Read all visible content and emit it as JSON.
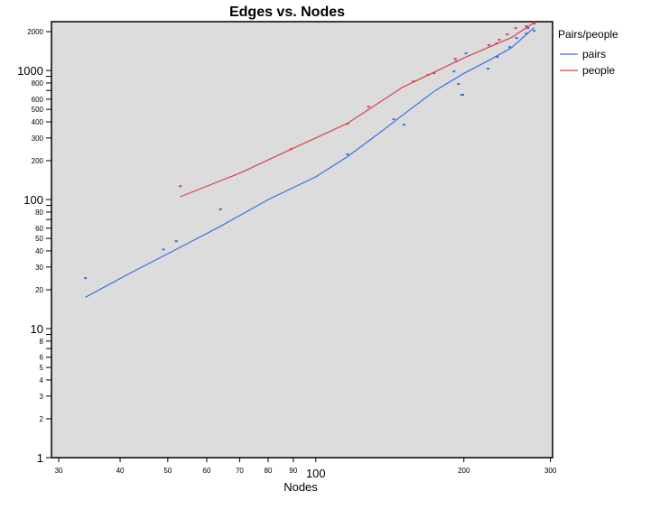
{
  "chart_data": {
    "type": "scatter",
    "title": "Edges vs. Nodes",
    "xlabel": "Nodes",
    "ylabel": "",
    "xscale": "log",
    "yscale": "log",
    "xlim": [
      29,
      303
    ],
    "ylim": [
      1,
      2390
    ],
    "grid": false,
    "x_ticks": [
      {
        "v": 30,
        "label": "30",
        "major": false
      },
      {
        "v": 40,
        "label": "40",
        "major": false
      },
      {
        "v": 50,
        "label": "50",
        "major": false
      },
      {
        "v": 60,
        "label": "60",
        "major": false
      },
      {
        "v": 70,
        "label": "70",
        "major": false
      },
      {
        "v": 80,
        "label": "80",
        "major": false
      },
      {
        "v": 90,
        "label": "90",
        "major": false
      },
      {
        "v": 100,
        "label": "100",
        "major": true
      },
      {
        "v": 200,
        "label": "200",
        "major": false
      },
      {
        "v": 300,
        "label": "300",
        "major": false
      }
    ],
    "y_ticks": [
      {
        "v": 1,
        "label": "1",
        "major": true
      },
      {
        "v": 2,
        "label": "2",
        "major": false
      },
      {
        "v": 3,
        "label": "3",
        "major": false
      },
      {
        "v": 4,
        "label": "4",
        "major": false
      },
      {
        "v": 5,
        "label": "5",
        "major": false
      },
      {
        "v": 6,
        "label": "6",
        "major": false
      },
      {
        "v": 7,
        "label": "",
        "major": false
      },
      {
        "v": 8,
        "label": "8",
        "major": false
      },
      {
        "v": 9,
        "label": "",
        "major": false
      },
      {
        "v": 10,
        "label": "10",
        "major": true
      },
      {
        "v": 20,
        "label": "20",
        "major": false
      },
      {
        "v": 30,
        "label": "30",
        "major": false
      },
      {
        "v": 40,
        "label": "40",
        "major": false
      },
      {
        "v": 50,
        "label": "50",
        "major": false
      },
      {
        "v": 60,
        "label": "60",
        "major": false
      },
      {
        "v": 70,
        "label": "",
        "major": false
      },
      {
        "v": 80,
        "label": "80",
        "major": false
      },
      {
        "v": 90,
        "label": "",
        "major": false
      },
      {
        "v": 100,
        "label": "100",
        "major": true
      },
      {
        "v": 200,
        "label": "200",
        "major": false
      },
      {
        "v": 300,
        "label": "300",
        "major": false
      },
      {
        "v": 400,
        "label": "400",
        "major": false
      },
      {
        "v": 500,
        "label": "500",
        "major": false
      },
      {
        "v": 600,
        "label": "600",
        "major": false
      },
      {
        "v": 700,
        "label": "",
        "major": false
      },
      {
        "v": 800,
        "label": "800",
        "major": false
      },
      {
        "v": 900,
        "label": "",
        "major": false
      },
      {
        "v": 1000,
        "label": "1000",
        "major": true
      },
      {
        "v": 2000,
        "label": "2000",
        "major": false
      }
    ],
    "legend": {
      "title": "Pairs/people",
      "placement": "right"
    },
    "series": [
      {
        "name": "pairs",
        "color": "#3a6fe0",
        "points": [
          [
            34,
            24.6
          ],
          [
            49,
            41
          ],
          [
            52,
            47.6
          ],
          [
            64,
            84
          ],
          [
            116,
            224
          ],
          [
            144,
            419
          ],
          [
            151,
            380
          ],
          [
            191,
            984
          ],
          [
            193,
            1175
          ],
          [
            195,
            785
          ],
          [
            198,
            648
          ],
          [
            199,
            648
          ],
          [
            202,
            1358
          ],
          [
            224,
            1033
          ],
          [
            234,
            1273
          ],
          [
            248,
            1520
          ],
          [
            256,
            1786
          ],
          [
            268,
            1936
          ],
          [
            270,
            2133
          ],
          [
            278,
            2310
          ],
          [
            278,
            2031
          ]
        ],
        "fit": [
          [
            34,
            17.5
          ],
          [
            42,
            27
          ],
          [
            50,
            38
          ],
          [
            64,
            62
          ],
          [
            80,
            100
          ],
          [
            100,
            150
          ],
          [
            116,
            215
          ],
          [
            135,
            330
          ],
          [
            150,
            450
          ],
          [
            175,
            700
          ],
          [
            200,
            950
          ],
          [
            225,
            1200
          ],
          [
            250,
            1500
          ],
          [
            278,
            2150
          ]
        ]
      },
      {
        "name": "people",
        "color": "#d8414f",
        "points": [
          [
            53,
            127
          ],
          [
            89,
            246
          ],
          [
            116,
            387
          ],
          [
            128,
            525
          ],
          [
            158,
            824
          ],
          [
            169,
            923
          ],
          [
            174,
            953
          ],
          [
            192,
            1233
          ],
          [
            225,
            1570
          ],
          [
            233,
            1622
          ],
          [
            236,
            1730
          ],
          [
            245,
            1905
          ],
          [
            255,
            2133
          ],
          [
            268,
            2203
          ],
          [
            278,
            2348
          ]
        ],
        "fit": [
          [
            53,
            105
          ],
          [
            70,
            160
          ],
          [
            89,
            245
          ],
          [
            116,
            390
          ],
          [
            150,
            740
          ],
          [
            200,
            1250
          ],
          [
            250,
            1800
          ],
          [
            278,
            2350
          ]
        ]
      }
    ]
  }
}
